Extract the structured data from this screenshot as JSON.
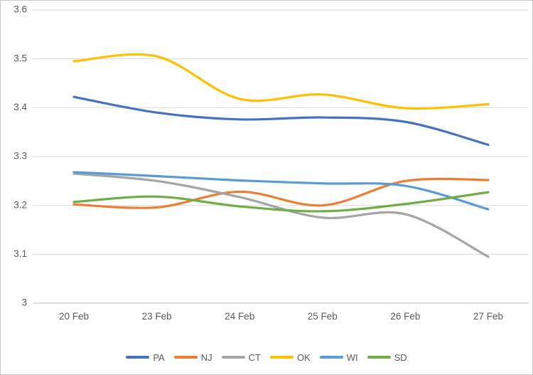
{
  "chart_data": {
    "type": "line",
    "title": "",
    "xlabel": "",
    "ylabel": "",
    "smooth": true,
    "grid": true,
    "legend_position": "bottom",
    "ylim": [
      3.0,
      3.6
    ],
    "gridline_color": "#D9D9D9",
    "axis_line_color": "#BFBFBF",
    "tick_label_color": "#595959",
    "categories": [
      "20 Feb",
      "23 Feb",
      "24 Feb",
      "25 Feb",
      "26 Feb",
      "27 Feb"
    ],
    "y_ticks": [
      {
        "label": "3.6",
        "value": 3.6
      },
      {
        "label": "3.5",
        "value": 3.5
      },
      {
        "label": "3.4",
        "value": 3.4
      },
      {
        "label": "3.3",
        "value": 3.3
      },
      {
        "label": "3.2",
        "value": 3.2
      },
      {
        "label": "3.1",
        "value": 3.1
      },
      {
        "label": "3",
        "value": 3.0
      }
    ],
    "series": [
      {
        "name": "PA",
        "color": "#4472C4",
        "values": [
          3.422,
          3.39,
          3.376,
          3.38,
          3.371,
          3.324
        ]
      },
      {
        "name": "NJ",
        "color": "#ED7D31",
        "values": [
          3.202,
          3.196,
          3.228,
          3.2,
          3.25,
          3.252
        ]
      },
      {
        "name": "CT",
        "color": "#A5A5A5",
        "values": [
          3.265,
          3.25,
          3.217,
          3.175,
          3.182,
          3.095
        ]
      },
      {
        "name": "OK",
        "color": "#FFC000",
        "values": [
          3.495,
          3.505,
          3.418,
          3.427,
          3.399,
          3.407
        ]
      },
      {
        "name": "WI",
        "color": "#5B9BD5",
        "values": [
          3.268,
          3.26,
          3.251,
          3.245,
          3.24,
          3.192
        ]
      },
      {
        "name": "SD",
        "color": "#70AD47",
        "values": [
          3.207,
          3.218,
          3.198,
          3.188,
          3.203,
          3.227
        ]
      }
    ]
  }
}
